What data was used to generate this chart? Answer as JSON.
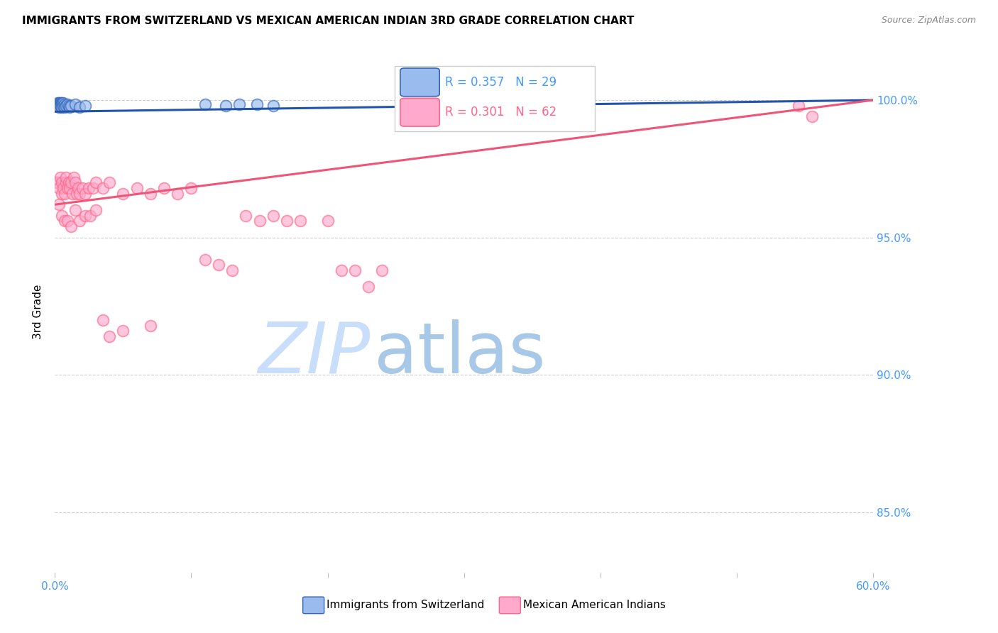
{
  "title": "IMMIGRANTS FROM SWITZERLAND VS MEXICAN AMERICAN INDIAN 3RD GRADE CORRELATION CHART",
  "source": "Source: ZipAtlas.com",
  "ylabel": "3rd Grade",
  "legend_label1": "Immigrants from Switzerland",
  "legend_label2": "Mexican American Indians",
  "R1": 0.357,
  "N1": 29,
  "R2": 0.301,
  "N2": 62,
  "color_blue_fill": "#99BBEE",
  "color_blue_edge": "#3366BB",
  "color_pink_fill": "#FFAACC",
  "color_pink_edge": "#FF6688",
  "color_blue_line": "#2255AA",
  "color_pink_line": "#EE5577",
  "color_axis_labels": "#4499FF",
  "xmin": 0.0,
  "xmax": 0.6,
  "ymin": 0.828,
  "ymax": 1.018,
  "ytick_positions": [
    0.85,
    0.9,
    0.95,
    1.0
  ],
  "ytick_labels": [
    "85.0%",
    "90.0%",
    "95.0%",
    "100.0%"
  ],
  "xtick_positions": [
    0.0,
    0.1,
    0.2,
    0.3,
    0.4,
    0.5,
    0.6
  ],
  "xtick_labels": [
    "0.0%",
    "",
    "",
    "",
    "",
    "",
    "60.0%"
  ],
  "blue_x": [
    0.001,
    0.002,
    0.002,
    0.003,
    0.003,
    0.003,
    0.004,
    0.004,
    0.004,
    0.005,
    0.005,
    0.005,
    0.006,
    0.006,
    0.007,
    0.007,
    0.008,
    0.009,
    0.01,
    0.011,
    0.012,
    0.015,
    0.018,
    0.022,
    0.11,
    0.125,
    0.135,
    0.148,
    0.16
  ],
  "blue_y": [
    0.9985,
    0.999,
    0.998,
    0.999,
    0.9985,
    0.9975,
    0.999,
    0.9985,
    0.998,
    0.999,
    0.9985,
    0.9975,
    0.999,
    0.998,
    0.9985,
    0.9975,
    0.998,
    0.9985,
    0.998,
    0.9975,
    0.998,
    0.9985,
    0.9975,
    0.998,
    0.9985,
    0.998,
    0.9985,
    0.9985,
    0.998
  ],
  "pink_x": [
    0.001,
    0.002,
    0.003,
    0.004,
    0.005,
    0.005,
    0.006,
    0.007,
    0.008,
    0.008,
    0.009,
    0.01,
    0.011,
    0.012,
    0.013,
    0.014,
    0.015,
    0.016,
    0.017,
    0.018,
    0.02,
    0.022,
    0.025,
    0.028,
    0.03,
    0.035,
    0.04,
    0.05,
    0.06,
    0.07,
    0.08,
    0.09,
    0.1,
    0.11,
    0.12,
    0.13,
    0.14,
    0.15,
    0.16,
    0.17,
    0.18,
    0.2,
    0.21,
    0.22,
    0.23,
    0.24,
    0.003,
    0.005,
    0.007,
    0.009,
    0.012,
    0.015,
    0.018,
    0.022,
    0.026,
    0.03,
    0.035,
    0.04,
    0.05,
    0.07,
    0.545,
    0.555
  ],
  "pink_y": [
    0.97,
    0.97,
    0.968,
    0.972,
    0.966,
    0.97,
    0.968,
    0.966,
    0.97,
    0.972,
    0.968,
    0.97,
    0.968,
    0.97,
    0.966,
    0.972,
    0.97,
    0.966,
    0.968,
    0.966,
    0.968,
    0.966,
    0.968,
    0.968,
    0.97,
    0.968,
    0.97,
    0.966,
    0.968,
    0.966,
    0.968,
    0.966,
    0.968,
    0.942,
    0.94,
    0.938,
    0.958,
    0.956,
    0.958,
    0.956,
    0.956,
    0.956,
    0.938,
    0.938,
    0.932,
    0.938,
    0.962,
    0.958,
    0.956,
    0.956,
    0.954,
    0.96,
    0.956,
    0.958,
    0.958,
    0.96,
    0.92,
    0.914,
    0.916,
    0.918,
    0.998,
    0.994
  ],
  "blue_trendline_x": [
    0.0,
    0.6
  ],
  "blue_trendline_y": [
    0.9958,
    1.0
  ],
  "pink_trendline_x": [
    0.0,
    0.6
  ],
  "pink_trendline_y": [
    0.962,
    1.0
  ],
  "watermark": "ZIPatlas",
  "watermark_zip_color": "#C8DEFA",
  "watermark_atlas_color": "#A8C8E8"
}
